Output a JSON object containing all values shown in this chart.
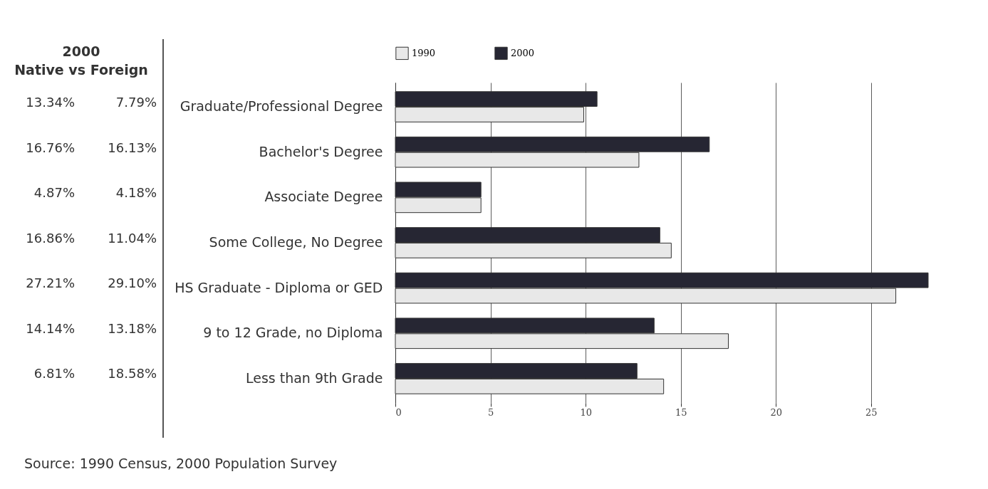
{
  "chart_data": [
    {
      "type": "other",
      "title": "2000",
      "subtitle": "Native vs Foreign",
      "annotations": [
        "13.34%",
        "7.79%",
        "16.76%",
        "16.13%",
        "4.87%",
        "4.18%",
        "16.86%",
        "11.04%",
        "27.21%",
        "29.10%",
        "14.14%",
        "13.18%",
        "6.81%",
        "18.58%"
      ]
    },
    {
      "type": "bar",
      "orientation": "horizontal",
      "categories": [
        "Graduate/Professional Degree",
        "Bachelor's Degree",
        "Associate Degree",
        "Some College, No Degree",
        "HS Graduate - Diploma or GED",
        "9 to 12 Grade, no Diploma",
        "Less than 9th Grade"
      ],
      "series": [
        {
          "name": "1990",
          "color": "#e8e8e8",
          "values": [
            9.9,
            12.8,
            4.5,
            14.5,
            26.3,
            17.5,
            14.1
          ]
        },
        {
          "name": "2000",
          "color": "#262633",
          "values": [
            10.6,
            16.5,
            4.5,
            13.9,
            28,
            13.6,
            12.7
          ]
        }
      ],
      "xlim": [
        0,
        28
      ],
      "xticks": [
        0,
        5,
        10,
        15,
        20,
        25
      ],
      "grid": "x",
      "legend": "top",
      "annotations": [
        "Source: 1990 Census, 2000 Population Survey"
      ]
    }
  ]
}
